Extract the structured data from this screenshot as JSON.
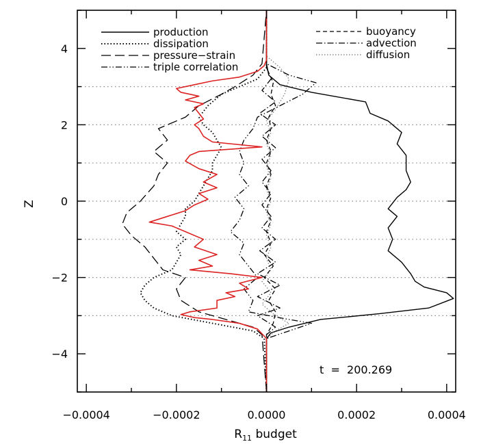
{
  "chart_data": {
    "type": "line",
    "xlabel_main": "R",
    "xlabel_sub": "11",
    "xlabel_rest": " budget",
    "ylabel": "Z",
    "xlim": [
      -0.00042,
      0.00042
    ],
    "ylim": [
      -5,
      5
    ],
    "x_ticks": [
      -0.0004,
      -0.0002,
      0.0,
      0.0002,
      0.0004
    ],
    "x_tick_labels": [
      "−0.0004",
      "−0.0002",
      "0.0000",
      "0.0002",
      "0.0004"
    ],
    "y_ticks": [
      -4,
      -2,
      0,
      2,
      4
    ],
    "y_tick_labels": [
      "−4",
      "−2",
      "0",
      "2",
      "4"
    ],
    "grid_y": [
      -3,
      -2,
      -1,
      0,
      1,
      2,
      3
    ],
    "annotation": "t  =  200.269",
    "legend_left": [
      {
        "label": "production",
        "dash": "solid"
      },
      {
        "label": "dissipation",
        "dash": "dotted"
      },
      {
        "label": "pressure−strain",
        "dash": "longdash"
      },
      {
        "label": "triple correlation",
        "dash": "dashdotdot"
      }
    ],
    "legend_right": [
      {
        "label": "buoyancy",
        "dash": "dashed"
      },
      {
        "label": "advection",
        "dash": "dashdot"
      },
      {
        "label": "diffusion",
        "dash": "grey-dotted"
      }
    ],
    "colors": {
      "frame": "#000000",
      "grid": "#888888",
      "highlight": "#dd2222",
      "diffusion": "#888888"
    },
    "series": [
      {
        "name": "production",
        "style": "solid",
        "color": "#000000",
        "points": [
          [
            0,
            -5
          ],
          [
            0,
            -3.6
          ],
          [
            1e-05,
            -3.45
          ],
          [
            5e-05,
            -3.3
          ],
          [
            0.00012,
            -3.1
          ],
          [
            0.00025,
            -2.95
          ],
          [
            0.00036,
            -2.8
          ],
          [
            0.000415,
            -2.55
          ],
          [
            0.0004,
            -2.4
          ],
          [
            0.00035,
            -2.25
          ],
          [
            0.00033,
            -2.1
          ],
          [
            0.00032,
            -1.9
          ],
          [
            0.0003,
            -1.6
          ],
          [
            0.00027,
            -1.3
          ],
          [
            0.00028,
            -1.0
          ],
          [
            0.00027,
            -0.7
          ],
          [
            0.00029,
            -0.4
          ],
          [
            0.00027,
            -0.2
          ],
          [
            0.00029,
            0.1
          ],
          [
            0.00031,
            0.3
          ],
          [
            0.00032,
            0.5
          ],
          [
            0.00031,
            0.8
          ],
          [
            0.00031,
            1.2
          ],
          [
            0.00029,
            1.5
          ],
          [
            0.0003,
            1.8
          ],
          [
            0.00027,
            2.1
          ],
          [
            0.00023,
            2.3
          ],
          [
            0.00022,
            2.6
          ],
          [
            0.0001,
            2.85
          ],
          [
            3e-05,
            3.05
          ],
          [
            5e-06,
            3.3
          ],
          [
            0,
            3.6
          ],
          [
            0,
            5
          ]
        ]
      },
      {
        "name": "dissipation",
        "style": "dotted",
        "color": "#000000",
        "points": [
          [
            0,
            -5
          ],
          [
            -5e-06,
            -3.6
          ],
          [
            -3e-05,
            -3.4
          ],
          [
            -0.00012,
            -3.2
          ],
          [
            -0.00021,
            -3.0
          ],
          [
            -0.00025,
            -2.8
          ],
          [
            -0.00027,
            -2.6
          ],
          [
            -0.00028,
            -2.4
          ],
          [
            -0.00027,
            -2.2
          ],
          [
            -0.00025,
            -2.0
          ],
          [
            -0.00021,
            -1.8
          ],
          [
            -0.0002,
            -1.6
          ],
          [
            -0.00019,
            -1.4
          ],
          [
            -0.0002,
            -1.2
          ],
          [
            -0.00018,
            -1.0
          ],
          [
            -0.0002,
            -0.8
          ],
          [
            -0.00019,
            -0.6
          ],
          [
            -0.00018,
            -0.4
          ],
          [
            -0.00018,
            -0.2
          ],
          [
            -0.00016,
            0
          ],
          [
            -0.00015,
            0.2
          ],
          [
            -0.00014,
            0.4
          ],
          [
            -0.00013,
            0.6
          ],
          [
            -0.00012,
            0.8
          ],
          [
            -0.00012,
            1.0
          ],
          [
            -0.00011,
            1.2
          ],
          [
            -0.0001,
            1.4
          ],
          [
            -0.00011,
            1.6
          ],
          [
            -0.00012,
            1.8
          ],
          [
            -0.00014,
            2.0
          ],
          [
            -0.00015,
            2.2
          ],
          [
            -0.00013,
            2.5
          ],
          [
            -0.0001,
            2.8
          ],
          [
            -6e-05,
            3.0
          ],
          [
            -2e-05,
            3.2
          ],
          [
            0,
            3.5
          ],
          [
            0,
            5
          ]
        ]
      },
      {
        "name": "pressure−strain",
        "style": "longdash",
        "color": "#000000",
        "points": [
          [
            0,
            -5
          ],
          [
            -1e-05,
            -3.5
          ],
          [
            -3e-05,
            -3.3
          ],
          [
            -9e-05,
            -3.1
          ],
          [
            -0.00015,
            -2.9
          ],
          [
            -0.00019,
            -2.6
          ],
          [
            -0.0002,
            -2.3
          ],
          [
            -0.00018,
            -2.0
          ],
          [
            -0.00023,
            -1.8
          ],
          [
            -0.00025,
            -1.5
          ],
          [
            -0.00027,
            -1.2
          ],
          [
            -0.0003,
            -0.9
          ],
          [
            -0.00032,
            -0.6
          ],
          [
            -0.00031,
            -0.3
          ],
          [
            -0.00028,
            0
          ],
          [
            -0.00025,
            0.4
          ],
          [
            -0.00024,
            0.7
          ],
          [
            -0.00022,
            1.0
          ],
          [
            -0.00025,
            1.3
          ],
          [
            -0.00022,
            1.6
          ],
          [
            -0.00024,
            1.9
          ],
          [
            -0.00018,
            2.2
          ],
          [
            -0.00015,
            2.5
          ],
          [
            -0.0001,
            2.8
          ],
          [
            -7e-05,
            3.0
          ],
          [
            -3e-05,
            3.3
          ],
          [
            -1e-05,
            3.6
          ],
          [
            0,
            5
          ]
        ]
      },
      {
        "name": "triple correlation",
        "style": "dashdotdot",
        "color": "#000000",
        "points": [
          [
            0,
            -5
          ],
          [
            0,
            -3.6
          ],
          [
            5e-05,
            -3.4
          ],
          [
            0.0001,
            -3.2
          ],
          [
            5e-05,
            -3.1
          ],
          [
            -4e-05,
            -2.9
          ],
          [
            -3e-05,
            -2.6
          ],
          [
            -5e-05,
            -2.3
          ],
          [
            -2e-05,
            -2.0
          ],
          [
            -4e-05,
            -1.7
          ],
          [
            -6e-05,
            -1.4
          ],
          [
            -5e-05,
            -1.1
          ],
          [
            -8e-05,
            -0.8
          ],
          [
            -6e-05,
            -0.5
          ],
          [
            -5e-05,
            -0.2
          ],
          [
            -7e-05,
            0.1
          ],
          [
            -4e-05,
            0.4
          ],
          [
            -6e-05,
            0.7
          ],
          [
            -5e-05,
            1.0
          ],
          [
            -6e-05,
            1.3
          ],
          [
            -5e-05,
            1.6
          ],
          [
            -3e-05,
            1.9
          ],
          [
            -2e-05,
            2.2
          ],
          [
            3e-05,
            2.5
          ],
          [
            8e-05,
            2.8
          ],
          [
            0.00011,
            3.1
          ],
          [
            5e-05,
            3.3
          ],
          [
            0,
            3.6
          ],
          [
            0,
            5
          ]
        ]
      },
      {
        "name": "buoyancy",
        "style": "dashed",
        "color": "#000000",
        "points": [
          [
            0,
            -5
          ],
          [
            0,
            -3.5
          ],
          [
            1.5e-05,
            -3.2
          ],
          [
            2e-05,
            -2.9
          ],
          [
            5e-06,
            -2.6
          ],
          [
            2e-05,
            -2.3
          ],
          [
            -5e-06,
            -2.0
          ],
          [
            1.5e-05,
            -1.7
          ],
          [
            -5e-06,
            -1.4
          ],
          [
            1e-05,
            -1.1
          ],
          [
            0,
            -0.8
          ],
          [
            1e-05,
            -0.5
          ],
          [
            0,
            -0.2
          ],
          [
            1e-05,
            0.1
          ],
          [
            0,
            0.4
          ],
          [
            1e-05,
            0.7
          ],
          [
            0,
            1.0
          ],
          [
            1e-05,
            1.3
          ],
          [
            0,
            1.6
          ],
          [
            1e-05,
            1.9
          ],
          [
            5e-06,
            2.2
          ],
          [
            2e-05,
            2.5
          ],
          [
            1e-05,
            2.8
          ],
          [
            1.5e-05,
            3.1
          ],
          [
            0,
            3.5
          ],
          [
            0,
            5
          ]
        ]
      },
      {
        "name": "advection",
        "style": "dashdot",
        "color": "#000000",
        "points": [
          [
            0,
            -5
          ],
          [
            0,
            -3.5
          ],
          [
            2e-05,
            -3.3
          ],
          [
            -2e-05,
            -3.0
          ],
          [
            3e-05,
            -2.8
          ],
          [
            -2e-05,
            -2.5
          ],
          [
            3e-05,
            -2.2
          ],
          [
            -2e-05,
            -1.9
          ],
          [
            2e-05,
            -1.6
          ],
          [
            -1.5e-05,
            -1.3
          ],
          [
            2e-05,
            -1.0
          ],
          [
            -1e-05,
            -0.7
          ],
          [
            1e-05,
            -0.4
          ],
          [
            -1e-05,
            -0.1
          ],
          [
            1e-05,
            0.2
          ],
          [
            -1e-05,
            0.5
          ],
          [
            1e-05,
            0.8
          ],
          [
            -1e-05,
            1.1
          ],
          [
            2e-05,
            1.4
          ],
          [
            -1e-05,
            1.7
          ],
          [
            2e-05,
            2.0
          ],
          [
            -1.5e-05,
            2.3
          ],
          [
            2e-05,
            2.6
          ],
          [
            -1e-05,
            2.9
          ],
          [
            1e-05,
            3.2
          ],
          [
            0,
            3.5
          ],
          [
            0,
            5
          ]
        ]
      },
      {
        "name": "diffusion",
        "style": "grey-dotted",
        "color": "#888888",
        "points": [
          [
            0,
            -5
          ],
          [
            0,
            -3.6
          ],
          [
            2e-05,
            -3.4
          ],
          [
            5e-05,
            -3.2
          ],
          [
            2e-05,
            -3.0
          ],
          [
            -1e-05,
            -2.7
          ],
          [
            1e-05,
            -2.4
          ],
          [
            -1e-05,
            -2.1
          ],
          [
            1e-05,
            -1.8
          ],
          [
            0,
            -1.5
          ],
          [
            1e-05,
            -1.2
          ],
          [
            0,
            -0.9
          ],
          [
            1e-05,
            -0.6
          ],
          [
            0,
            -0.3
          ],
          [
            1e-05,
            0
          ],
          [
            0,
            0.3
          ],
          [
            1e-05,
            0.6
          ],
          [
            0,
            0.9
          ],
          [
            1e-05,
            1.2
          ],
          [
            0,
            1.5
          ],
          [
            1e-05,
            1.8
          ],
          [
            0,
            2.1
          ],
          [
            2e-05,
            2.4
          ],
          [
            4e-05,
            2.8
          ],
          [
            5e-05,
            3.2
          ],
          [
            3e-05,
            3.5
          ],
          [
            0,
            3.8
          ],
          [
            0,
            5
          ]
        ]
      },
      {
        "name": "",
        "style": "solid",
        "color": "#dd2222",
        "points": [
          [
            0,
            -5
          ],
          [
            0,
            -3.6
          ],
          [
            -2e-05,
            -3.35
          ],
          [
            -6e-05,
            -3.2
          ],
          [
            -0.00012,
            -3.1
          ],
          [
            -0.00016,
            -3.05
          ],
          [
            -0.00019,
            -2.97
          ],
          [
            -0.00017,
            -2.9
          ],
          [
            -0.00011,
            -2.8
          ],
          [
            -0.00011,
            -2.6
          ],
          [
            -7e-05,
            -2.5
          ],
          [
            -9e-05,
            -2.4
          ],
          [
            -4e-05,
            -2.3
          ],
          [
            -6e-05,
            -2.15
          ],
          [
            -1e-05,
            -2.0
          ],
          [
            -8e-05,
            -1.9
          ],
          [
            -0.00017,
            -1.8
          ],
          [
            -0.00012,
            -1.7
          ],
          [
            -0.00015,
            -1.55
          ],
          [
            -0.00011,
            -1.4
          ],
          [
            -0.00016,
            -1.2
          ],
          [
            -0.00014,
            -1.0
          ],
          [
            -0.00018,
            -0.8
          ],
          [
            -0.00021,
            -0.65
          ],
          [
            -0.00026,
            -0.55
          ],
          [
            -0.00022,
            -0.4
          ],
          [
            -0.00018,
            -0.25
          ],
          [
            -0.00016,
            -0.1
          ],
          [
            -0.00013,
            0.05
          ],
          [
            -0.00015,
            0.2
          ],
          [
            -0.00011,
            0.35
          ],
          [
            -0.00014,
            0.5
          ],
          [
            -0.00011,
            0.7
          ],
          [
            -0.00015,
            0.85
          ],
          [
            -0.00018,
            1.05
          ],
          [
            -0.00017,
            1.2
          ],
          [
            -0.00015,
            1.3
          ],
          [
            -1e-05,
            1.42
          ],
          [
            -0.00012,
            1.55
          ],
          [
            -0.00014,
            1.7
          ],
          [
            -0.00015,
            1.9
          ],
          [
            -0.00016,
            2.0
          ],
          [
            -0.00014,
            2.15
          ],
          [
            -0.00015,
            2.3
          ],
          [
            -0.00016,
            2.45
          ],
          [
            -0.00014,
            2.55
          ],
          [
            -0.00018,
            2.65
          ],
          [
            -0.00015,
            2.75
          ],
          [
            -0.00019,
            2.85
          ],
          [
            -0.0002,
            2.95
          ],
          [
            -0.00016,
            3.05
          ],
          [
            -0.00012,
            3.15
          ],
          [
            -6e-05,
            3.25
          ],
          [
            -2e-05,
            3.4
          ],
          [
            -5e-06,
            3.55
          ],
          [
            0,
            3.7
          ],
          [
            0,
            5
          ]
        ]
      }
    ]
  }
}
